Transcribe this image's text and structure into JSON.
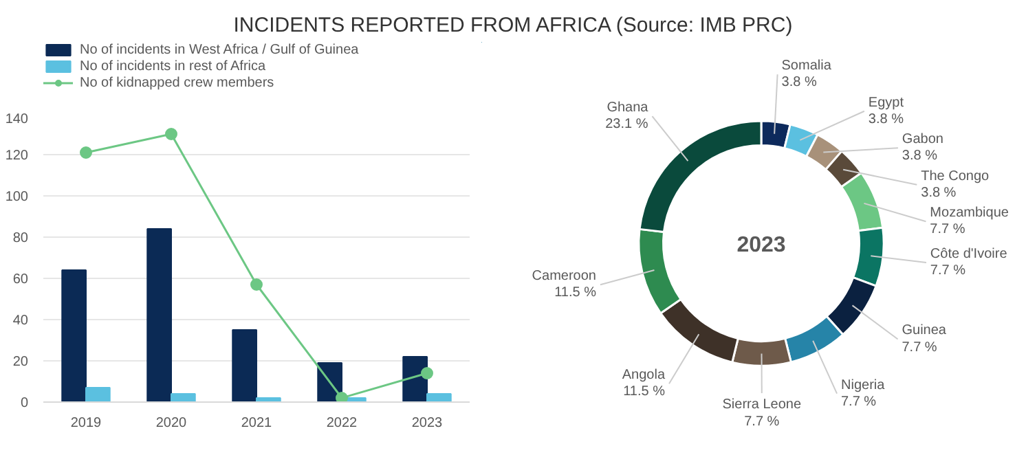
{
  "chart_data": [
    {
      "type": "bar",
      "title": "INCIDENTS REPORTED FROM AFRICA (Source: IMB PRC)",
      "categories": [
        "2019",
        "2020",
        "2021",
        "2022",
        "2023"
      ],
      "series": [
        {
          "name": "No of incidents in West Africa / Gulf of Guinea",
          "color": "#0b2a55",
          "values": [
            64,
            84,
            35,
            19,
            22
          ]
        },
        {
          "name": "No of incidents in rest of Africa",
          "color": "#5bc0e0",
          "values": [
            7,
            4,
            2,
            2,
            4
          ]
        },
        {
          "name": "No of kidnapped crew members",
          "type": "line",
          "color": "#6cc784",
          "values": [
            121,
            130,
            57,
            2,
            14
          ]
        }
      ],
      "ylim": [
        0,
        140
      ],
      "yticks": [
        0,
        20,
        40,
        60,
        80,
        100,
        120,
        140
      ],
      "grid": "y",
      "legend": "top",
      "marker": "circle"
    },
    {
      "type": "donut",
      "title": "2023",
      "categories": [
        "Somalia",
        "Egypt",
        "Gabon",
        "The Congo",
        "Mozambique",
        "Côte d'Ivoire",
        "Guinea",
        "Nigeria",
        "Sierra Leone",
        "Angola",
        "Cameroon",
        "Ghana"
      ],
      "values": [
        3.8,
        3.8,
        3.8,
        3.8,
        7.7,
        7.7,
        7.7,
        7.7,
        7.7,
        11.5,
        11.5,
        23.1
      ],
      "value_labels": [
        "3.8 %",
        "3.8 %",
        "3.8 %",
        "3.8 %",
        "7.7 %",
        "7.7 %",
        "7.7 %",
        "7.7 %",
        "7.7 %",
        "11.5 %",
        "11.5 %",
        "23.1 %"
      ],
      "colors": [
        "#0d2a5c",
        "#5bc0e0",
        "#a8917a",
        "#5a4a3a",
        "#6cc784",
        "#0b7563",
        "#0b2140",
        "#2684a8",
        "#6e5a4a",
        "#3e3128",
        "#2e8b50",
        "#0a4a3c"
      ]
    }
  ]
}
